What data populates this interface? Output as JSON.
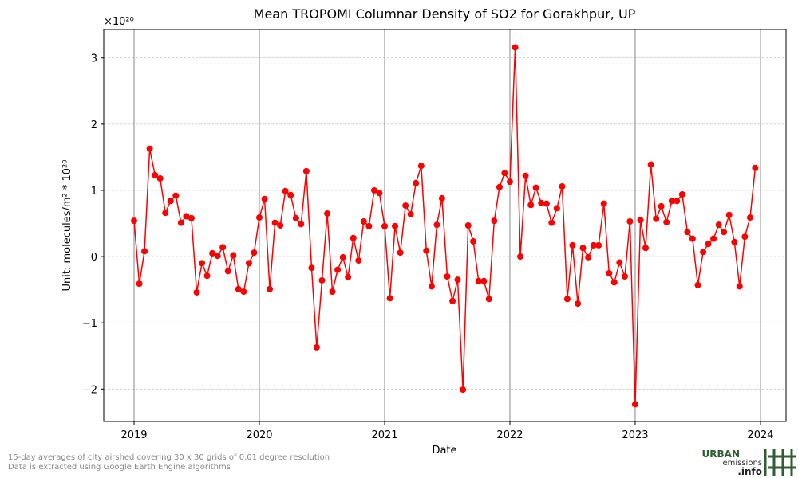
{
  "chart_data": {
    "type": "line",
    "title": "Mean TROPOMI Columnar Density of SO2 for Gorakhpur, UP",
    "x_label": "Date",
    "y_label": "Unit: molecules/m² * 10²⁰",
    "y_offset_text": "×10²⁰",
    "x": [
      2019.0,
      2019.042,
      2019.083,
      2019.125,
      2019.167,
      2019.208,
      2019.25,
      2019.292,
      2019.333,
      2019.375,
      2019.417,
      2019.458,
      2019.5,
      2019.542,
      2019.583,
      2019.625,
      2019.667,
      2019.708,
      2019.75,
      2019.792,
      2019.833,
      2019.875,
      2019.917,
      2019.958,
      2020.0,
      2020.042,
      2020.083,
      2020.125,
      2020.167,
      2020.208,
      2020.25,
      2020.292,
      2020.333,
      2020.375,
      2020.417,
      2020.458,
      2020.5,
      2020.542,
      2020.583,
      2020.625,
      2020.667,
      2020.708,
      2020.75,
      2020.792,
      2020.833,
      2020.875,
      2020.917,
      2020.958,
      2021.0,
      2021.042,
      2021.083,
      2021.125,
      2021.167,
      2021.208,
      2021.25,
      2021.292,
      2021.333,
      2021.375,
      2021.417,
      2021.458,
      2021.5,
      2021.542,
      2021.583,
      2021.625,
      2021.667,
      2021.708,
      2021.75,
      2021.792,
      2021.833,
      2021.875,
      2021.917,
      2021.958,
      2022.0,
      2022.042,
      2022.083,
      2022.125,
      2022.167,
      2022.208,
      2022.25,
      2022.292,
      2022.333,
      2022.375,
      2022.417,
      2022.458,
      2022.5,
      2022.542,
      2022.583,
      2022.625,
      2022.667,
      2022.708,
      2022.75,
      2022.792,
      2022.833,
      2022.875,
      2022.917,
      2022.958,
      2023.0,
      2023.042,
      2023.083,
      2023.125,
      2023.167,
      2023.208,
      2023.25,
      2023.292,
      2023.333,
      2023.375,
      2023.417,
      2023.458,
      2023.5,
      2023.542,
      2023.583,
      2023.625,
      2023.667,
      2023.708,
      2023.75,
      2023.792,
      2023.833,
      2023.875,
      2023.917,
      2023.958
    ],
    "series": [
      {
        "color": "#ff0000",
        "values": [
          0.54,
          -0.41,
          0.08,
          1.63,
          1.23,
          1.18,
          0.66,
          0.84,
          0.92,
          0.51,
          0.61,
          0.58,
          -0.54,
          -0.1,
          -0.29,
          0.05,
          0.01,
          0.14,
          -0.22,
          0.02,
          -0.49,
          -0.53,
          -0.1,
          0.06,
          0.59,
          0.87,
          -0.49,
          0.51,
          0.47,
          0.99,
          0.93,
          0.58,
          0.49,
          1.29,
          -0.17,
          -1.37,
          -0.36,
          0.65,
          -0.53,
          -0.2,
          -0.01,
          -0.31,
          0.28,
          -0.06,
          0.53,
          0.46,
          1.0,
          0.96,
          0.46,
          -0.63,
          0.46,
          0.06,
          0.77,
          0.64,
          1.11,
          1.37,
          0.09,
          -0.45,
          0.48,
          0.88,
          -0.3,
          -0.67,
          -0.35,
          -2.01,
          0.47,
          0.23,
          -0.37,
          -0.37,
          -0.64,
          0.54,
          1.05,
          1.26,
          1.13,
          3.16,
          0.0,
          1.22,
          0.78,
          1.04,
          0.81,
          0.8,
          0.51,
          0.73,
          1.06,
          -0.64,
          0.17,
          -0.71,
          0.13,
          -0.01,
          0.17,
          0.17,
          0.8,
          -0.25,
          -0.39,
          -0.09,
          -0.3,
          0.53,
          -2.23,
          0.55,
          0.13,
          1.39,
          0.57,
          0.76,
          0.52,
          0.84,
          0.84,
          0.94,
          0.37,
          0.27,
          -0.43,
          0.07,
          0.19,
          0.27,
          0.48,
          0.37,
          0.63,
          0.22,
          -0.45,
          0.3,
          0.59,
          1.34
        ]
      }
    ],
    "xlim": [
      2018.758,
      2024.204
    ],
    "ylim": [
      -2.49,
      3.43
    ],
    "xticks": [
      2019,
      2020,
      2021,
      2022,
      2023,
      2024
    ],
    "yticks": [
      {
        "value": -2,
        "label": "−2"
      },
      {
        "value": -1,
        "label": "−1"
      },
      0,
      1,
      2,
      3
    ],
    "grid": true
  },
  "notes": [
    "15-day averages of city airshed covering 30 x 30 grids of 0.01 degree resolution",
    "Data is extracted using Google Earth Engine algorithms"
  ],
  "logo": {
    "line1": "URBAN",
    "line2": "emissions",
    "line3": ".info"
  }
}
